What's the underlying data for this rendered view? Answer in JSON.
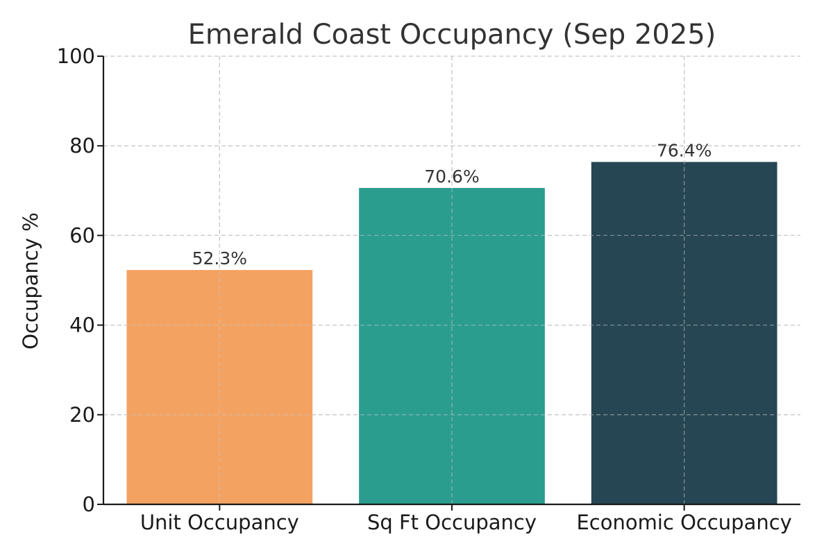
{
  "chart_data": {
    "type": "bar",
    "title": "Emerald Coast Occupancy (Sep 2025)",
    "xlabel": "",
    "ylabel": "Occupancy %",
    "categories": [
      "Unit Occupancy",
      "Sq Ft Occupancy",
      "Economic Occupancy"
    ],
    "values": [
      52.3,
      70.6,
      76.4
    ],
    "value_labels": [
      "52.3%",
      "70.6%",
      "76.4%"
    ],
    "colors": [
      "#f4a261",
      "#2a9d8f",
      "#264653"
    ],
    "ylim": [
      0,
      100
    ],
    "yticks": [
      0,
      20,
      40,
      60,
      80,
      100
    ],
    "grid": true,
    "legend": "none"
  }
}
